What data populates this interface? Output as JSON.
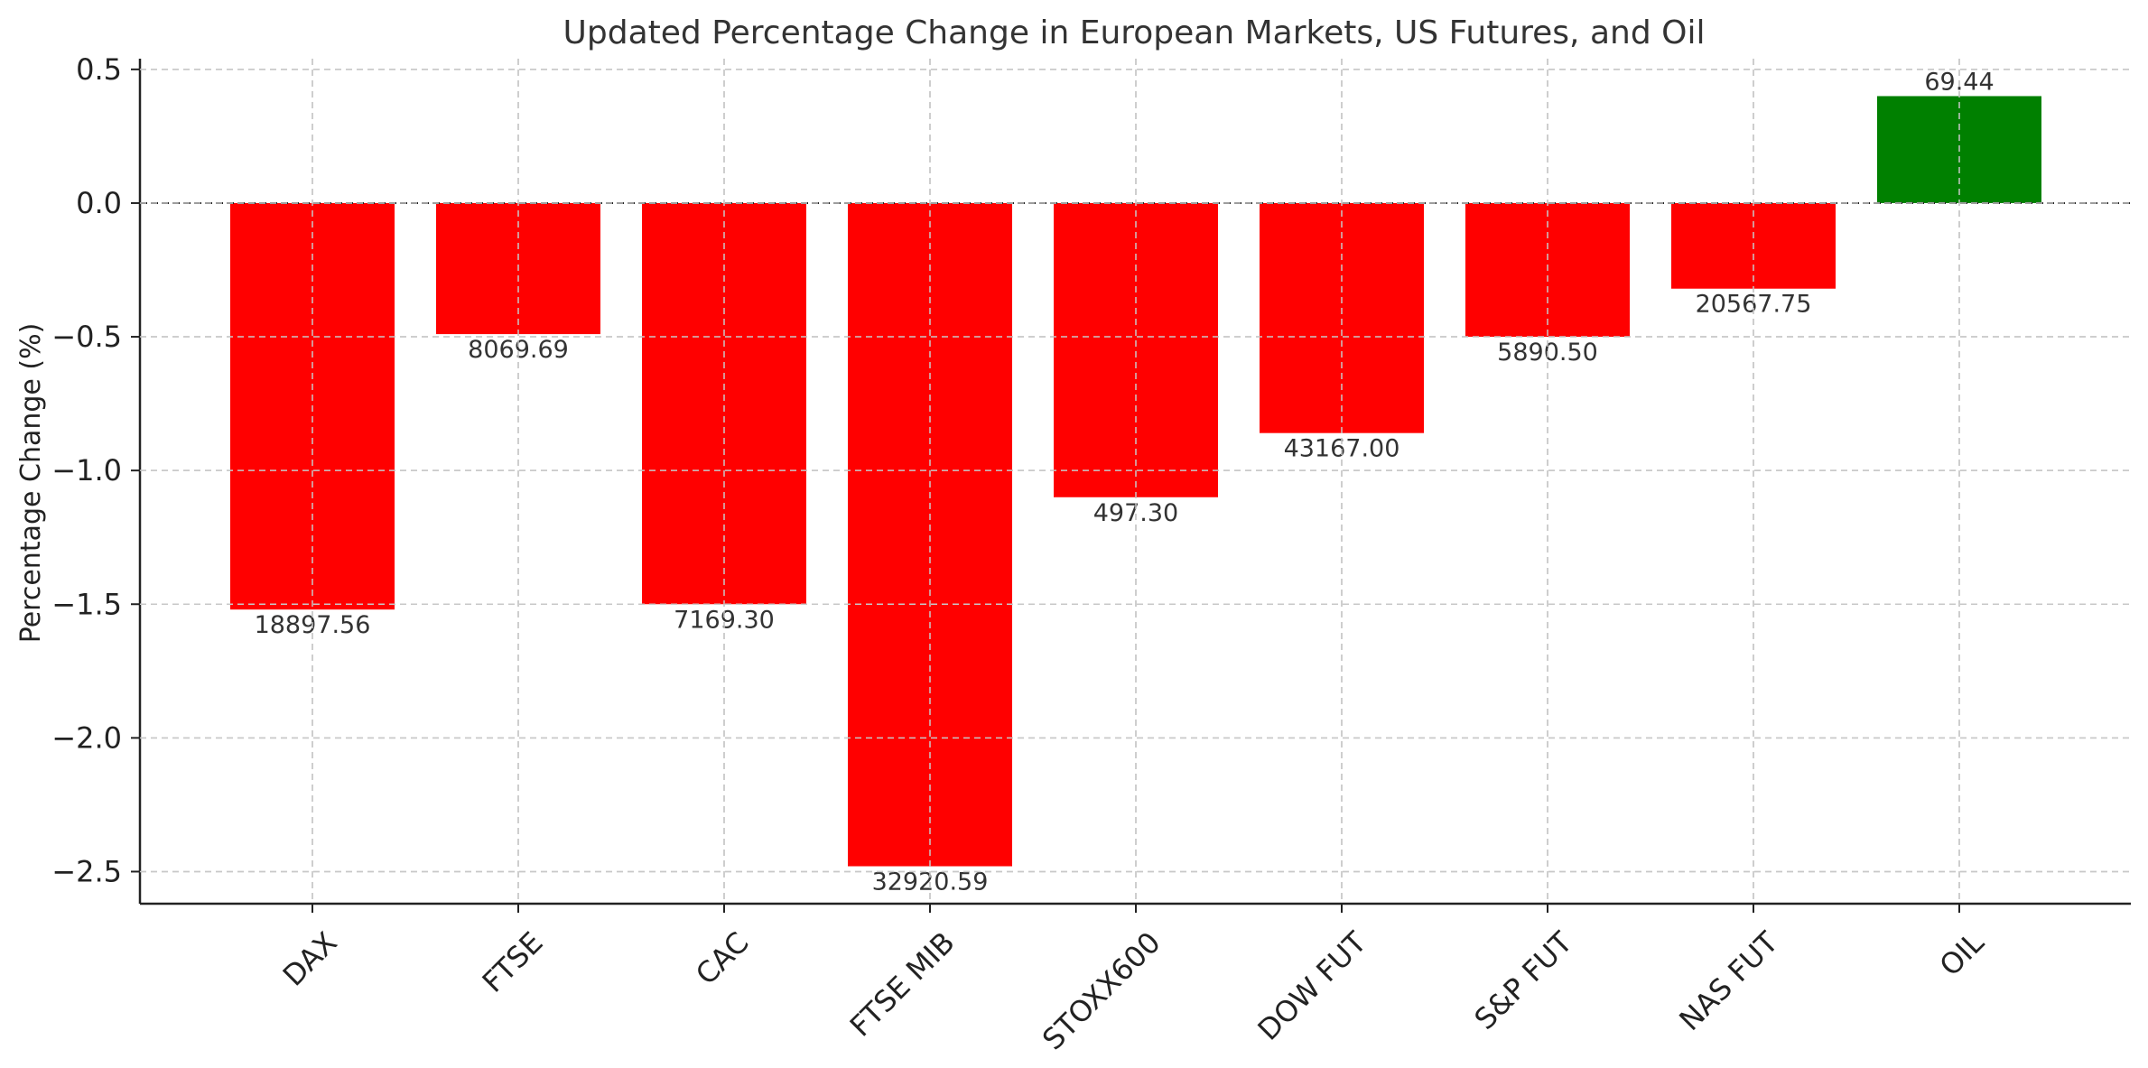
{
  "chart_data": {
    "type": "bar",
    "title": "Updated Percentage Change in European Markets, US Futures, and Oil",
    "xlabel": "",
    "ylabel": "Percentage Change (%)",
    "categories": [
      "DAX",
      "FTSE",
      "CAC",
      "FTSE MIB",
      "STOXX600",
      "DOW FUT",
      "S&P FUT",
      "NAS FUT",
      "OIL"
    ],
    "values": [
      -1.52,
      -0.49,
      -1.5,
      -2.48,
      -1.1,
      -0.86,
      -0.5,
      -0.32,
      0.4
    ],
    "data_labels": [
      "18897.56",
      "8069.69",
      "7169.30",
      "32920.59",
      "497.30",
      "43167.00",
      "5890.50",
      "20567.75",
      "69.44"
    ],
    "ylim": [
      -2.62,
      0.54
    ],
    "yticks": [
      0.5,
      0.0,
      -0.5,
      -1.0,
      -1.5,
      -2.0,
      -2.5
    ],
    "ytick_labels": [
      "0.5",
      "0.0",
      "−0.5",
      "−1.0",
      "−1.5",
      "−2.0",
      "−2.5"
    ],
    "grid": true,
    "zero_line": "dashed",
    "colors": {
      "negative": "#ff0000",
      "positive": "#008000"
    }
  }
}
